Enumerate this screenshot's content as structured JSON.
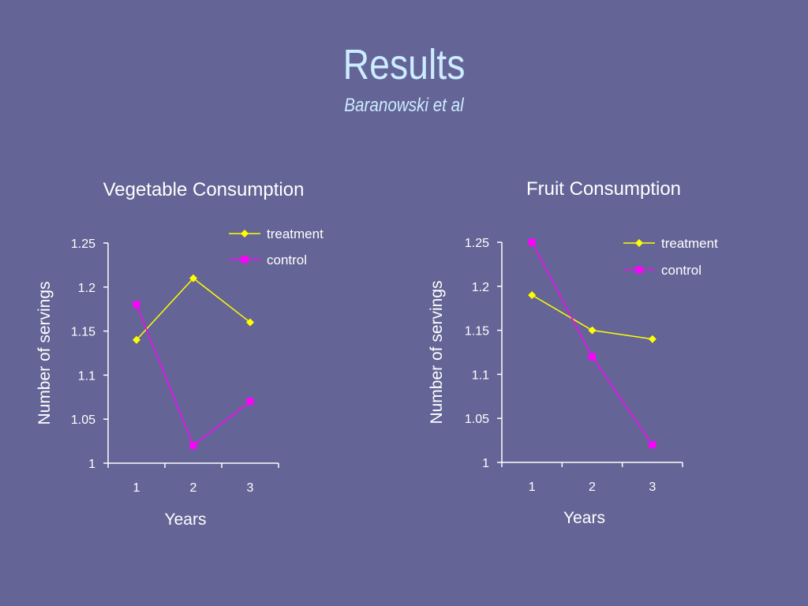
{
  "slide": {
    "title": "Results",
    "subtitle": "Baranowski et al"
  },
  "colors": {
    "background": "#646496",
    "title": "#ccecff",
    "treatment": "#ffff00",
    "control": "#ff00ff",
    "axis": "#ffffff"
  },
  "chart_data": [
    {
      "type": "line",
      "title": "Vegetable Consumption",
      "xlabel": "Years",
      "ylabel": "Number of servings",
      "categories": [
        "1",
        "2",
        "3"
      ],
      "yticks": [
        "1",
        "1.05",
        "1.1",
        "1.15",
        "1.2",
        "1.25"
      ],
      "ylim": [
        1,
        1.25
      ],
      "legend": "top-right",
      "grid": false,
      "series": [
        {
          "name": "treatment",
          "marker": "diamond",
          "values": [
            1.14,
            1.21,
            1.16
          ]
        },
        {
          "name": "control",
          "marker": "square",
          "values": [
            1.18,
            1.02,
            1.07
          ]
        }
      ]
    },
    {
      "type": "line",
      "title": "Fruit Consumption",
      "xlabel": "Years",
      "ylabel": "Number of servings",
      "categories": [
        "1",
        "2",
        "3"
      ],
      "yticks": [
        "1",
        "1.05",
        "1.1",
        "1.15",
        "1.2",
        "1.25"
      ],
      "ylim": [
        1,
        1.25
      ],
      "legend": "top-right",
      "grid": false,
      "series": [
        {
          "name": "treatment",
          "marker": "diamond",
          "values": [
            1.19,
            1.15,
            1.14
          ]
        },
        {
          "name": "control",
          "marker": "square",
          "values": [
            1.25,
            1.12,
            1.02
          ]
        }
      ]
    }
  ]
}
